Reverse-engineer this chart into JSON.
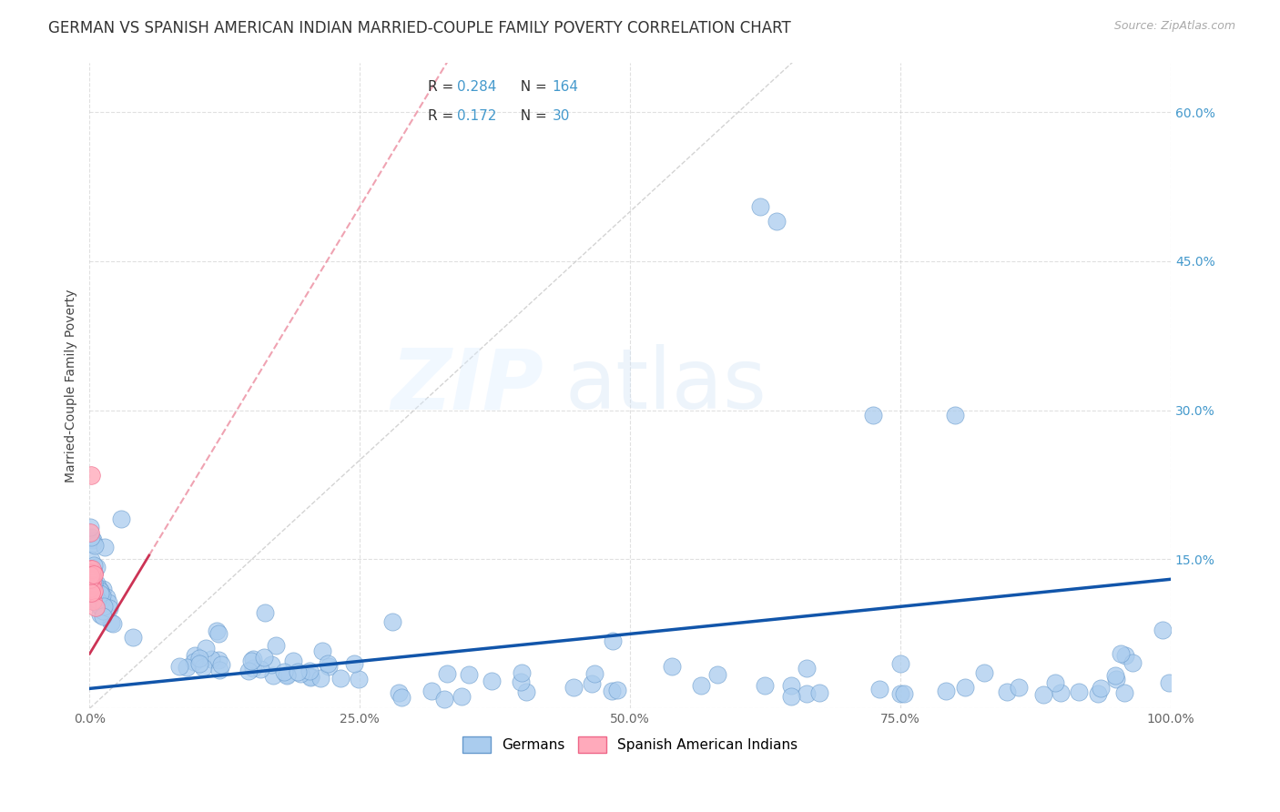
{
  "title": "GERMAN VS SPANISH AMERICAN INDIAN MARRIED-COUPLE FAMILY POVERTY CORRELATION CHART",
  "source": "Source: ZipAtlas.com",
  "ylabel": "Married-Couple Family Poverty",
  "xlim": [
    0,
    1.0
  ],
  "ylim": [
    0,
    0.65
  ],
  "xticks": [
    0.0,
    0.25,
    0.5,
    0.75,
    1.0
  ],
  "xtick_labels": [
    "0.0%",
    "25.0%",
    "50.0%",
    "75.0%",
    "100.0%"
  ],
  "yticks": [
    0.0,
    0.15,
    0.3,
    0.45,
    0.6
  ],
  "ytick_labels_right": [
    "",
    "15.0%",
    "30.0%",
    "45.0%",
    "60.0%"
  ],
  "german_R": "0.284",
  "german_N": "164",
  "spanish_R": "0.172",
  "spanish_N": "30",
  "blue_label_color": "#4499cc",
  "grid_color": "#cccccc",
  "title_fontsize": 12,
  "blue_scatter_color": "#aaccee",
  "blue_scatter_edge": "#6699cc",
  "pink_scatter_color": "#ffaabb",
  "pink_scatter_edge": "#ee6688",
  "regression_blue_color": "#1155aa",
  "regression_pink_solid_color": "#cc3355",
  "regression_pink_dash_color": "#ee99aa",
  "diag_color": "#cccccc",
  "legend_R_N_color": "#4499cc",
  "legend_label_color": "#333333"
}
